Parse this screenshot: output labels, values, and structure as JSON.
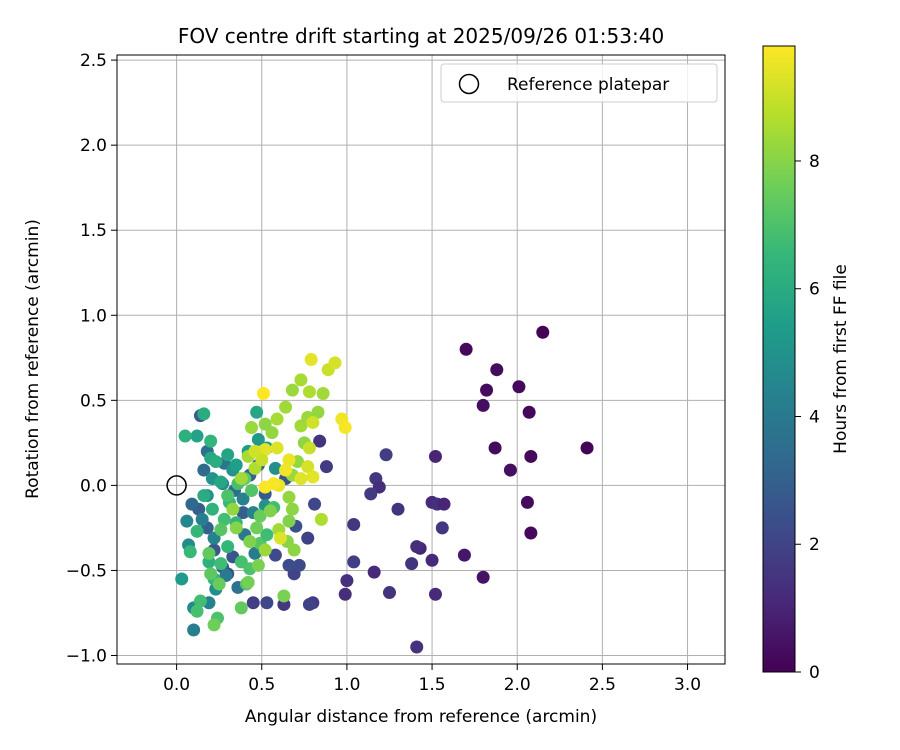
{
  "chart_data": {
    "type": "scatter",
    "title": "FOV centre drift starting at 2025/09/26 01:53:40",
    "xlabel": "Angular distance from reference (arcmin)",
    "ylabel": "Rotation from reference (arcmin)",
    "xlim": [
      -0.35,
      3.22
    ],
    "ylim": [
      -1.05,
      2.53
    ],
    "xticks": [
      0.0,
      0.5,
      1.0,
      1.5,
      2.0,
      2.5,
      3.0
    ],
    "xtick_labels": [
      "0.0",
      "0.5",
      "1.0",
      "1.5",
      "2.0",
      "2.5",
      "3.0"
    ],
    "yticks": [
      -1.0,
      -0.5,
      0.0,
      0.5,
      1.0,
      1.5,
      2.0,
      2.5
    ],
    "ytick_labels": [
      "−1.0",
      "−0.5",
      "0.0",
      "0.5",
      "1.0",
      "1.5",
      "2.0",
      "2.5"
    ],
    "grid": true,
    "legend": {
      "position": "top-right",
      "entries": [
        "Reference platepar"
      ]
    },
    "reference_point": {
      "x": 0.0,
      "y": 0.0
    },
    "colorbar": {
      "label": "Hours from first FF file",
      "range": [
        0,
        9.8
      ],
      "ticks": [
        0,
        2,
        4,
        6,
        8
      ],
      "tick_labels": [
        "0",
        "2",
        "4",
        "6",
        "8"
      ],
      "colormap": "viridis"
    },
    "points": [
      {
        "x": 2.15,
        "y": 0.9,
        "h": 0.1
      },
      {
        "x": 1.7,
        "y": 0.8,
        "h": 0.2
      },
      {
        "x": 1.88,
        "y": 0.68,
        "h": 0.3
      },
      {
        "x": 2.01,
        "y": 0.58,
        "h": 0.2
      },
      {
        "x": 1.82,
        "y": 0.56,
        "h": 0.3
      },
      {
        "x": 1.8,
        "y": 0.47,
        "h": 0.4
      },
      {
        "x": 2.07,
        "y": 0.43,
        "h": 0.2
      },
      {
        "x": 1.87,
        "y": 0.22,
        "h": 0.3
      },
      {
        "x": 2.41,
        "y": 0.22,
        "h": 0.1
      },
      {
        "x": 2.08,
        "y": 0.17,
        "h": 0.2
      },
      {
        "x": 1.96,
        "y": 0.09,
        "h": 0.4
      },
      {
        "x": 2.06,
        "y": -0.1,
        "h": 0.3
      },
      {
        "x": 2.08,
        "y": -0.28,
        "h": 0.2
      },
      {
        "x": 1.8,
        "y": -0.54,
        "h": 0.5
      },
      {
        "x": 1.69,
        "y": -0.41,
        "h": 0.6
      },
      {
        "x": 1.52,
        "y": 0.17,
        "h": 1.0
      },
      {
        "x": 1.5,
        "y": -0.1,
        "h": 1.2
      },
      {
        "x": 1.53,
        "y": -0.11,
        "h": 1.4
      },
      {
        "x": 1.57,
        "y": -0.11,
        "h": 1.0
      },
      {
        "x": 1.56,
        "y": -0.25,
        "h": 1.6
      },
      {
        "x": 1.5,
        "y": -0.44,
        "h": 1.1
      },
      {
        "x": 1.43,
        "y": -0.37,
        "h": 1.0
      },
      {
        "x": 1.41,
        "y": -0.36,
        "h": 1.3
      },
      {
        "x": 1.38,
        "y": -0.46,
        "h": 1.5
      },
      {
        "x": 1.52,
        "y": -0.64,
        "h": 1.2
      },
      {
        "x": 1.41,
        "y": -0.95,
        "h": 1.4
      },
      {
        "x": 1.23,
        "y": 0.18,
        "h": 1.8
      },
      {
        "x": 1.17,
        "y": 0.04,
        "h": 1.6
      },
      {
        "x": 1.19,
        "y": -0.01,
        "h": 1.3
      },
      {
        "x": 1.14,
        "y": -0.05,
        "h": 1.7
      },
      {
        "x": 1.3,
        "y": -0.14,
        "h": 1.5
      },
      {
        "x": 1.04,
        "y": -0.23,
        "h": 1.6
      },
      {
        "x": 1.04,
        "y": -0.45,
        "h": 1.8
      },
      {
        "x": 1.16,
        "y": -0.51,
        "h": 1.2
      },
      {
        "x": 1.0,
        "y": -0.56,
        "h": 1.4
      },
      {
        "x": 0.99,
        "y": -0.64,
        "h": 1.3
      },
      {
        "x": 1.25,
        "y": -0.63,
        "h": 1.5
      },
      {
        "x": 0.8,
        "y": -0.69,
        "h": 1.7
      },
      {
        "x": 0.78,
        "y": -0.7,
        "h": 1.9
      },
      {
        "x": 0.63,
        "y": -0.7,
        "h": 1.6
      },
      {
        "x": 0.53,
        "y": -0.69,
        "h": 2.1
      },
      {
        "x": 0.45,
        "y": -0.69,
        "h": 1.8
      },
      {
        "x": 0.77,
        "y": -0.31,
        "h": 1.9
      },
      {
        "x": 0.81,
        "y": -0.11,
        "h": 2.1
      },
      {
        "x": 0.84,
        "y": 0.26,
        "h": 1.5
      },
      {
        "x": 0.88,
        "y": 0.11,
        "h": 1.7
      },
      {
        "x": 0.69,
        "y": -0.52,
        "h": 2.0
      },
      {
        "x": 0.72,
        "y": -0.47,
        "h": 2.2
      },
      {
        "x": 0.66,
        "y": -0.47,
        "h": 2.3
      },
      {
        "x": 0.58,
        "y": -0.41,
        "h": 2.2
      },
      {
        "x": 0.7,
        "y": -0.24,
        "h": 2.4
      },
      {
        "x": 0.64,
        "y": 0.04,
        "h": 2.6
      },
      {
        "x": 0.52,
        "y": -0.05,
        "h": 2.8
      },
      {
        "x": 0.48,
        "y": 0.12,
        "h": 3.0
      },
      {
        "x": 0.43,
        "y": 0.06,
        "h": 3.2
      },
      {
        "x": 0.39,
        "y": -0.16,
        "h": 2.9
      },
      {
        "x": 0.33,
        "y": -0.42,
        "h": 2.6
      },
      {
        "x": 0.3,
        "y": -0.52,
        "h": 2.4
      },
      {
        "x": 0.27,
        "y": -0.48,
        "h": 2.8
      },
      {
        "x": 0.22,
        "y": -0.38,
        "h": 2.7
      },
      {
        "x": 0.18,
        "y": -0.25,
        "h": 3.1
      },
      {
        "x": 0.13,
        "y": -0.14,
        "h": 2.9
      },
      {
        "x": 0.09,
        "y": -0.11,
        "h": 3.3
      },
      {
        "x": 0.16,
        "y": 0.09,
        "h": 3.4
      },
      {
        "x": 0.18,
        "y": 0.2,
        "h": 3.6
      },
      {
        "x": 0.14,
        "y": 0.41,
        "h": 3.0
      },
      {
        "x": 0.28,
        "y": 0.13,
        "h": 3.8
      },
      {
        "x": 0.34,
        "y": -0.03,
        "h": 3.5
      },
      {
        "x": 0.4,
        "y": -0.29,
        "h": 3.9
      },
      {
        "x": 0.46,
        "y": -0.4,
        "h": 4.1
      },
      {
        "x": 0.36,
        "y": -0.6,
        "h": 3.7
      },
      {
        "x": 0.29,
        "y": -0.53,
        "h": 4.0
      },
      {
        "x": 0.19,
        "y": -0.69,
        "h": 4.3
      },
      {
        "x": 0.1,
        "y": -0.72,
        "h": 4.6
      },
      {
        "x": 0.1,
        "y": -0.85,
        "h": 4.2
      },
      {
        "x": 0.23,
        "y": -0.61,
        "h": 4.8
      },
      {
        "x": 0.22,
        "y": -0.31,
        "h": 4.4
      },
      {
        "x": 0.15,
        "y": -0.2,
        "h": 4.2
      },
      {
        "x": 0.06,
        "y": -0.21,
        "h": 4.5
      },
      {
        "x": 0.07,
        "y": -0.35,
        "h": 4.7
      },
      {
        "x": 0.03,
        "y": -0.55,
        "h": 5.3
      },
      {
        "x": 0.18,
        "y": -0.06,
        "h": 4.9
      },
      {
        "x": 0.21,
        "y": 0.04,
        "h": 5.1
      },
      {
        "x": 0.27,
        "y": 0.01,
        "h": 4.6
      },
      {
        "x": 0.33,
        "y": 0.09,
        "h": 5.0
      },
      {
        "x": 0.39,
        "y": -0.08,
        "h": 4.4
      },
      {
        "x": 0.45,
        "y": -0.16,
        "h": 4.3
      },
      {
        "x": 0.52,
        "y": -0.12,
        "h": 5.0
      },
      {
        "x": 0.48,
        "y": 0.27,
        "h": 5.2
      },
      {
        "x": 0.42,
        "y": 0.2,
        "h": 5.4
      },
      {
        "x": 0.47,
        "y": 0.43,
        "h": 5.8
      },
      {
        "x": 0.53,
        "y": 0.22,
        "h": 5.6
      },
      {
        "x": 0.58,
        "y": 0.1,
        "h": 4.9
      },
      {
        "x": 0.35,
        "y": 0.12,
        "h": 5.5
      },
      {
        "x": 0.3,
        "y": 0.18,
        "h": 5.7
      },
      {
        "x": 0.2,
        "y": 0.16,
        "h": 5.9
      },
      {
        "x": 0.12,
        "y": 0.29,
        "h": 5.6
      },
      {
        "x": 0.05,
        "y": 0.29,
        "h": 6.2
      },
      {
        "x": 0.16,
        "y": 0.42,
        "h": 6.0
      },
      {
        "x": 0.2,
        "y": 0.26,
        "h": 6.4
      },
      {
        "x": 0.23,
        "y": 0.14,
        "h": 6.1
      },
      {
        "x": 0.26,
        "y": 0.02,
        "h": 5.8
      },
      {
        "x": 0.16,
        "y": -0.06,
        "h": 6.0
      },
      {
        "x": 0.21,
        "y": -0.14,
        "h": 6.3
      },
      {
        "x": 0.12,
        "y": -0.27,
        "h": 6.5
      },
      {
        "x": 0.08,
        "y": -0.39,
        "h": 6.6
      },
      {
        "x": 0.19,
        "y": -0.45,
        "h": 6.2
      },
      {
        "x": 0.22,
        "y": -0.55,
        "h": 6.4
      },
      {
        "x": 0.14,
        "y": -0.68,
        "h": 6.8
      },
      {
        "x": 0.12,
        "y": -0.74,
        "h": 6.9
      },
      {
        "x": 0.24,
        "y": -0.78,
        "h": 7.0
      },
      {
        "x": 0.26,
        "y": -0.46,
        "h": 6.7
      },
      {
        "x": 0.3,
        "y": -0.36,
        "h": 6.5
      },
      {
        "x": 0.35,
        "y": -0.22,
        "h": 6.4
      },
      {
        "x": 0.31,
        "y": -0.1,
        "h": 6.6
      },
      {
        "x": 0.28,
        "y": -0.2,
        "h": 6.8
      },
      {
        "x": 0.38,
        "y": -0.45,
        "h": 6.9
      },
      {
        "x": 0.41,
        "y": -0.58,
        "h": 7.1
      },
      {
        "x": 0.43,
        "y": -0.49,
        "h": 7.0
      },
      {
        "x": 0.49,
        "y": -0.34,
        "h": 7.2
      },
      {
        "x": 0.53,
        "y": -0.29,
        "h": 6.7
      },
      {
        "x": 0.57,
        "y": -0.13,
        "h": 6.8
      },
      {
        "x": 0.44,
        "y": -0.03,
        "h": 7.1
      },
      {
        "x": 0.4,
        "y": 0.04,
        "h": 7.3
      },
      {
        "x": 0.36,
        "y": 0.01,
        "h": 6.9
      },
      {
        "x": 0.3,
        "y": -0.06,
        "h": 7.0
      },
      {
        "x": 0.26,
        "y": -0.26,
        "h": 7.2
      },
      {
        "x": 0.19,
        "y": -0.4,
        "h": 7.4
      },
      {
        "x": 0.2,
        "y": -0.52,
        "h": 7.3
      },
      {
        "x": 0.25,
        "y": -0.58,
        "h": 7.5
      },
      {
        "x": 0.22,
        "y": -0.82,
        "h": 7.6
      },
      {
        "x": 0.38,
        "y": -0.72,
        "h": 7.4
      },
      {
        "x": 0.42,
        "y": -0.57,
        "h": 7.7
      },
      {
        "x": 0.48,
        "y": -0.47,
        "h": 7.8
      },
      {
        "x": 0.47,
        "y": -0.25,
        "h": 7.6
      },
      {
        "x": 0.49,
        "y": -0.18,
        "h": 7.5
      },
      {
        "x": 0.55,
        "y": -0.15,
        "h": 7.9
      },
      {
        "x": 0.63,
        "y": -0.65,
        "h": 7.8
      },
      {
        "x": 0.65,
        "y": -0.33,
        "h": 8.0
      },
      {
        "x": 0.66,
        "y": -0.21,
        "h": 7.9
      },
      {
        "x": 0.68,
        "y": -0.14,
        "h": 8.1
      },
      {
        "x": 0.66,
        "y": -0.07,
        "h": 8.2
      },
      {
        "x": 0.68,
        "y": 0.06,
        "h": 8.3
      },
      {
        "x": 0.71,
        "y": 0.14,
        "h": 8.2
      },
      {
        "x": 0.75,
        "y": 0.25,
        "h": 8.1
      },
      {
        "x": 0.73,
        "y": 0.35,
        "h": 8.4
      },
      {
        "x": 0.77,
        "y": 0.4,
        "h": 8.3
      },
      {
        "x": 0.83,
        "y": 0.43,
        "h": 8.2
      },
      {
        "x": 0.86,
        "y": 0.54,
        "h": 8.4
      },
      {
        "x": 0.78,
        "y": 0.55,
        "h": 8.6
      },
      {
        "x": 0.73,
        "y": 0.62,
        "h": 8.5
      },
      {
        "x": 0.68,
        "y": 0.56,
        "h": 8.3
      },
      {
        "x": 0.64,
        "y": 0.46,
        "h": 8.4
      },
      {
        "x": 0.59,
        "y": 0.39,
        "h": 8.5
      },
      {
        "x": 0.56,
        "y": 0.31,
        "h": 8.2
      },
      {
        "x": 0.52,
        "y": 0.36,
        "h": 8.1
      },
      {
        "x": 0.44,
        "y": 0.34,
        "h": 8.3
      },
      {
        "x": 0.42,
        "y": 0.17,
        "h": 8.5
      },
      {
        "x": 0.46,
        "y": 0.1,
        "h": 8.6
      },
      {
        "x": 0.38,
        "y": 0.04,
        "h": 8.4
      },
      {
        "x": 0.33,
        "y": -0.14,
        "h": 8.2
      },
      {
        "x": 0.35,
        "y": -0.25,
        "h": 8.0
      },
      {
        "x": 0.43,
        "y": -0.33,
        "h": 7.9
      },
      {
        "x": 0.52,
        "y": -0.38,
        "h": 8.3
      },
      {
        "x": 0.6,
        "y": -0.26,
        "h": 8.4
      },
      {
        "x": 0.69,
        "y": -0.38,
        "h": 8.1
      },
      {
        "x": 0.85,
        "y": -0.2,
        "h": 8.6
      },
      {
        "x": 0.89,
        "y": 0.68,
        "h": 9.0
      },
      {
        "x": 0.79,
        "y": 0.74,
        "h": 9.4
      },
      {
        "x": 0.93,
        "y": 0.72,
        "h": 9.2
      },
      {
        "x": 0.97,
        "y": 0.39,
        "h": 9.6
      },
      {
        "x": 0.99,
        "y": 0.34,
        "h": 9.7
      },
      {
        "x": 0.8,
        "y": 0.37,
        "h": 9.1
      },
      {
        "x": 0.78,
        "y": 0.22,
        "h": 9.0
      },
      {
        "x": 0.77,
        "y": 0.11,
        "h": 9.2
      },
      {
        "x": 0.73,
        "y": 0.04,
        "h": 9.3
      },
      {
        "x": 0.8,
        "y": 0.05,
        "h": 9.4
      },
      {
        "x": 0.66,
        "y": 0.15,
        "h": 9.5
      },
      {
        "x": 0.64,
        "y": 0.09,
        "h": 9.6
      },
      {
        "x": 0.6,
        "y": 0.0,
        "h": 9.5
      },
      {
        "x": 0.57,
        "y": 0.01,
        "h": 9.7
      },
      {
        "x": 0.52,
        "y": -0.01,
        "h": 9.8
      },
      {
        "x": 0.51,
        "y": 0.54,
        "h": 9.8
      },
      {
        "x": 0.59,
        "y": 0.22,
        "h": 9.3
      },
      {
        "x": 0.52,
        "y": 0.21,
        "h": 9.4
      },
      {
        "x": 0.5,
        "y": 0.15,
        "h": 9.0
      },
      {
        "x": 0.46,
        "y": 0.2,
        "h": 9.1
      },
      {
        "x": 0.61,
        "y": -0.31,
        "h": 9.3
      }
    ]
  }
}
